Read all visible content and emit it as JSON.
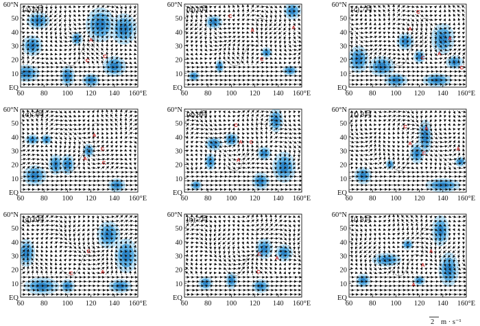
{
  "figure": {
    "reference_vector": {
      "magnitude_label": "2",
      "units_label": "m · s⁻¹"
    }
  },
  "chart_data": [
    {
      "type": "vector",
      "panel": "(a)",
      "month": "6月",
      "xlim": [
        60,
        160
      ],
      "ylim": [
        0,
        60
      ],
      "x_ticks": [
        "60",
        "80",
        "100",
        "120",
        "140",
        "160°E"
      ],
      "y_ticks": [
        "EQ",
        "10",
        "20",
        "30",
        "40",
        "50",
        "60°N"
      ],
      "markers": [
        {
          "symbol": "A",
          "lon": 120,
          "lat": 33
        },
        {
          "symbol": "C",
          "lon": 117,
          "lat": 18
        },
        {
          "symbol": "C",
          "lon": 132,
          "lat": 21
        }
      ],
      "shading": [
        {
          "lon": 75,
          "lat": 48,
          "rx": 8,
          "ry": 5
        },
        {
          "lon": 70,
          "lat": 30,
          "rx": 7,
          "ry": 6
        },
        {
          "lon": 65,
          "lat": 10,
          "rx": 9,
          "ry": 5
        },
        {
          "lon": 100,
          "lat": 8,
          "rx": 5,
          "ry": 6
        },
        {
          "lon": 128,
          "lat": 45,
          "rx": 10,
          "ry": 10
        },
        {
          "lon": 148,
          "lat": 42,
          "rx": 9,
          "ry": 9
        },
        {
          "lon": 140,
          "lat": 15,
          "rx": 8,
          "ry": 6
        },
        {
          "lon": 108,
          "lat": 35,
          "rx": 4,
          "ry": 4
        },
        {
          "lon": 120,
          "lat": 5,
          "rx": 6,
          "ry": 4
        }
      ]
    },
    {
      "type": "vector",
      "panel": "(b)",
      "month": "6月",
      "xlim": [
        60,
        160
      ],
      "ylim": [
        0,
        60
      ],
      "x_ticks": [
        "60",
        "80",
        "100",
        "120",
        "140",
        "160°E"
      ],
      "y_ticks": [
        "EQ",
        "10",
        "20",
        "30",
        "40",
        "50",
        "60°N"
      ],
      "markers": [
        {
          "symbol": "C",
          "lon": 99,
          "lat": 50
        },
        {
          "symbol": "A",
          "lon": 118,
          "lat": 40
        },
        {
          "symbol": "A",
          "lon": 153,
          "lat": 42
        },
        {
          "symbol": "C",
          "lon": 126,
          "lat": 19
        }
      ],
      "shading": [
        {
          "lon": 85,
          "lat": 47,
          "rx": 6,
          "ry": 4
        },
        {
          "lon": 152,
          "lat": 55,
          "rx": 6,
          "ry": 5
        },
        {
          "lon": 68,
          "lat": 8,
          "rx": 4,
          "ry": 3
        },
        {
          "lon": 90,
          "lat": 15,
          "rx": 3,
          "ry": 4
        },
        {
          "lon": 130,
          "lat": 25,
          "rx": 4,
          "ry": 3
        },
        {
          "lon": 150,
          "lat": 12,
          "rx": 5,
          "ry": 3
        }
      ]
    },
    {
      "type": "vector",
      "panel": "(c)",
      "month": "7月",
      "xlim": [
        60,
        160
      ],
      "ylim": [
        0,
        60
      ],
      "x_ticks": [
        "60",
        "80",
        "100",
        "120",
        "140",
        "160°E"
      ],
      "y_ticks": [
        "EQ",
        "10",
        "20",
        "30",
        "40",
        "50",
        "60°N"
      ],
      "markers": [
        {
          "symbol": "C",
          "lon": 119,
          "lat": 53
        },
        {
          "symbol": "A",
          "lon": 112,
          "lat": 41
        },
        {
          "symbol": "A",
          "lon": 146,
          "lat": 34
        },
        {
          "symbol": "C",
          "lon": 123,
          "lat": 20
        },
        {
          "symbol": "A",
          "lon": 137,
          "lat": 23
        },
        {
          "symbol": "C",
          "lon": 156,
          "lat": 13
        }
      ],
      "shading": [
        {
          "lon": 68,
          "lat": 20,
          "rx": 7,
          "ry": 8
        },
        {
          "lon": 88,
          "lat": 15,
          "rx": 9,
          "ry": 6
        },
        {
          "lon": 108,
          "lat": 33,
          "rx": 6,
          "ry": 5
        },
        {
          "lon": 140,
          "lat": 35,
          "rx": 8,
          "ry": 9
        },
        {
          "lon": 100,
          "lat": 5,
          "rx": 8,
          "ry": 4
        },
        {
          "lon": 135,
          "lat": 5,
          "rx": 10,
          "ry": 4
        },
        {
          "lon": 120,
          "lat": 22,
          "rx": 4,
          "ry": 4
        },
        {
          "lon": 150,
          "lat": 18,
          "rx": 6,
          "ry": 4
        }
      ]
    },
    {
      "type": "vector",
      "panel": "(d)",
      "month": "7月",
      "xlim": [
        60,
        160
      ],
      "ylim": [
        0,
        60
      ],
      "x_ticks": [
        "60",
        "80",
        "100",
        "120",
        "140",
        "160°E"
      ],
      "y_ticks": [
        "EQ",
        "10",
        "20",
        "30",
        "40",
        "50",
        "60°N"
      ],
      "markers": [
        {
          "symbol": "A",
          "lon": 123,
          "lat": 40
        },
        {
          "symbol": "C",
          "lon": 130,
          "lat": 30
        },
        {
          "symbol": "A",
          "lon": 115,
          "lat": 23
        },
        {
          "symbol": "C",
          "lon": 131,
          "lat": 20
        }
      ],
      "shading": [
        {
          "lon": 70,
          "lat": 38,
          "rx": 5,
          "ry": 3
        },
        {
          "lon": 82,
          "lat": 38,
          "rx": 4,
          "ry": 3
        },
        {
          "lon": 72,
          "lat": 12,
          "rx": 8,
          "ry": 6
        },
        {
          "lon": 90,
          "lat": 20,
          "rx": 5,
          "ry": 6
        },
        {
          "lon": 100,
          "lat": 20,
          "rx": 5,
          "ry": 6
        },
        {
          "lon": 118,
          "lat": 30,
          "rx": 4,
          "ry": 4
        },
        {
          "lon": 142,
          "lat": 5,
          "rx": 6,
          "ry": 4
        }
      ]
    },
    {
      "type": "vector",
      "panel": "(e)",
      "month": "8月",
      "xlim": [
        60,
        160
      ],
      "ylim": [
        0,
        60
      ],
      "x_ticks": [
        "60",
        "80",
        "100",
        "120",
        "140",
        "160°E"
      ],
      "y_ticks": [
        "EQ",
        "10",
        "20",
        "30",
        "40",
        "50",
        "60°N"
      ],
      "markers": [
        {
          "symbol": "C",
          "lon": 104,
          "lat": 47
        },
        {
          "symbol": "A",
          "lon": 108,
          "lat": 35
        },
        {
          "symbol": "C",
          "lon": 117,
          "lat": 35
        },
        {
          "symbol": "A",
          "lon": 106,
          "lat": 22
        }
      ],
      "shading": [
        {
          "lon": 138,
          "lat": 52,
          "rx": 5,
          "ry": 7
        },
        {
          "lon": 85,
          "lat": 35,
          "rx": 6,
          "ry": 4
        },
        {
          "lon": 100,
          "lat": 38,
          "rx": 5,
          "ry": 4
        },
        {
          "lon": 82,
          "lat": 22,
          "rx": 4,
          "ry": 5
        },
        {
          "lon": 128,
          "lat": 28,
          "rx": 5,
          "ry": 4
        },
        {
          "lon": 145,
          "lat": 18,
          "rx": 8,
          "ry": 9
        },
        {
          "lon": 125,
          "lat": 8,
          "rx": 6,
          "ry": 5
        },
        {
          "lon": 70,
          "lat": 5,
          "rx": 4,
          "ry": 3
        }
      ]
    },
    {
      "type": "vector",
      "panel": "(f)",
      "month": "8月",
      "xlim": [
        60,
        160
      ],
      "ylim": [
        0,
        60
      ],
      "x_ticks": [
        "60",
        "80",
        "100",
        "120",
        "140",
        "160°E"
      ],
      "y_ticks": [
        "EQ",
        "10",
        "20",
        "30",
        "40",
        "50",
        "60°N"
      ],
      "markers": [
        {
          "symbol": "C",
          "lon": 108,
          "lat": 46
        },
        {
          "symbol": "A",
          "lon": 126,
          "lat": 45
        },
        {
          "symbol": "A",
          "lon": 112,
          "lat": 34
        },
        {
          "symbol": "C",
          "lon": 124,
          "lat": 27
        },
        {
          "symbol": "A",
          "lon": 153,
          "lat": 30
        }
      ],
      "shading": [
        {
          "lon": 125,
          "lat": 40,
          "rx": 5,
          "ry": 10
        },
        {
          "lon": 118,
          "lat": 28,
          "rx": 5,
          "ry": 6
        },
        {
          "lon": 72,
          "lat": 12,
          "rx": 6,
          "ry": 5
        },
        {
          "lon": 95,
          "lat": 20,
          "rx": 3,
          "ry": 3
        },
        {
          "lon": 140,
          "lat": 5,
          "rx": 12,
          "ry": 4
        },
        {
          "lon": 155,
          "lat": 22,
          "rx": 4,
          "ry": 3
        }
      ]
    },
    {
      "type": "vector",
      "panel": "(g)",
      "month": "6月",
      "xlim": [
        60,
        160
      ],
      "ylim": [
        0,
        60
      ],
      "x_ticks": [
        "60",
        "80",
        "100",
        "120",
        "140",
        "160°E"
      ],
      "y_ticks": [
        "EQ",
        "10",
        "20",
        "30",
        "40",
        "50",
        "60°N"
      ],
      "markers": [
        {
          "symbol": "C",
          "lon": 118,
          "lat": 32
        },
        {
          "symbol": "C",
          "lon": 103,
          "lat": 16
        },
        {
          "symbol": "A",
          "lon": 130,
          "lat": 17
        }
      ],
      "shading": [
        {
          "lon": 65,
          "lat": 32,
          "rx": 6,
          "ry": 8
        },
        {
          "lon": 135,
          "lat": 45,
          "rx": 8,
          "ry": 8
        },
        {
          "lon": 150,
          "lat": 30,
          "rx": 8,
          "ry": 10
        },
        {
          "lon": 78,
          "lat": 8,
          "rx": 12,
          "ry": 5
        },
        {
          "lon": 100,
          "lat": 8,
          "rx": 5,
          "ry": 4
        },
        {
          "lon": 145,
          "lat": 8,
          "rx": 8,
          "ry": 4
        }
      ]
    },
    {
      "type": "vector",
      "panel": "(h)",
      "month": "7月",
      "xlim": [
        60,
        160
      ],
      "ylim": [
        0,
        60
      ],
      "x_ticks": [
        "60",
        "80",
        "100",
        "120",
        "140",
        "160°E"
      ],
      "y_ticks": [
        "EQ",
        "10",
        "20",
        "30",
        "40",
        "50",
        "60°N"
      ],
      "markers": [
        {
          "symbol": "C",
          "lon": 124,
          "lat": 30
        },
        {
          "symbol": "A",
          "lon": 139,
          "lat": 27
        },
        {
          "symbol": "C",
          "lon": 123,
          "lat": 17
        }
      ],
      "shading": [
        {
          "lon": 128,
          "lat": 35,
          "rx": 6,
          "ry": 6
        },
        {
          "lon": 145,
          "lat": 32,
          "rx": 6,
          "ry": 5
        },
        {
          "lon": 100,
          "lat": 12,
          "rx": 4,
          "ry": 5
        },
        {
          "lon": 125,
          "lat": 8,
          "rx": 6,
          "ry": 4
        },
        {
          "lon": 78,
          "lat": 10,
          "rx": 5,
          "ry": 4
        }
      ]
    },
    {
      "type": "vector",
      "panel": "(i)",
      "month": "8月",
      "xlim": [
        60,
        160
      ],
      "ylim": [
        0,
        60
      ],
      "x_ticks": [
        "60",
        "80",
        "100",
        "120",
        "140",
        "160°E"
      ],
      "y_ticks": [
        "EQ",
        "10",
        "20",
        "30",
        "40",
        "50",
        "60°N"
      ],
      "markers": [
        {
          "symbol": "A",
          "lon": 130,
          "lat": 32
        },
        {
          "symbol": "A",
          "lon": 123,
          "lat": 22
        },
        {
          "symbol": "A",
          "lon": 115,
          "lat": 8
        }
      ],
      "shading": [
        {
          "lon": 138,
          "lat": 48,
          "rx": 6,
          "ry": 9
        },
        {
          "lon": 145,
          "lat": 20,
          "rx": 7,
          "ry": 10
        },
        {
          "lon": 92,
          "lat": 27,
          "rx": 10,
          "ry": 4
        },
        {
          "lon": 110,
          "lat": 38,
          "rx": 4,
          "ry": 3
        },
        {
          "lon": 72,
          "lat": 12,
          "rx": 5,
          "ry": 4
        },
        {
          "lon": 120,
          "lat": 12,
          "rx": 4,
          "ry": 3
        }
      ]
    }
  ]
}
